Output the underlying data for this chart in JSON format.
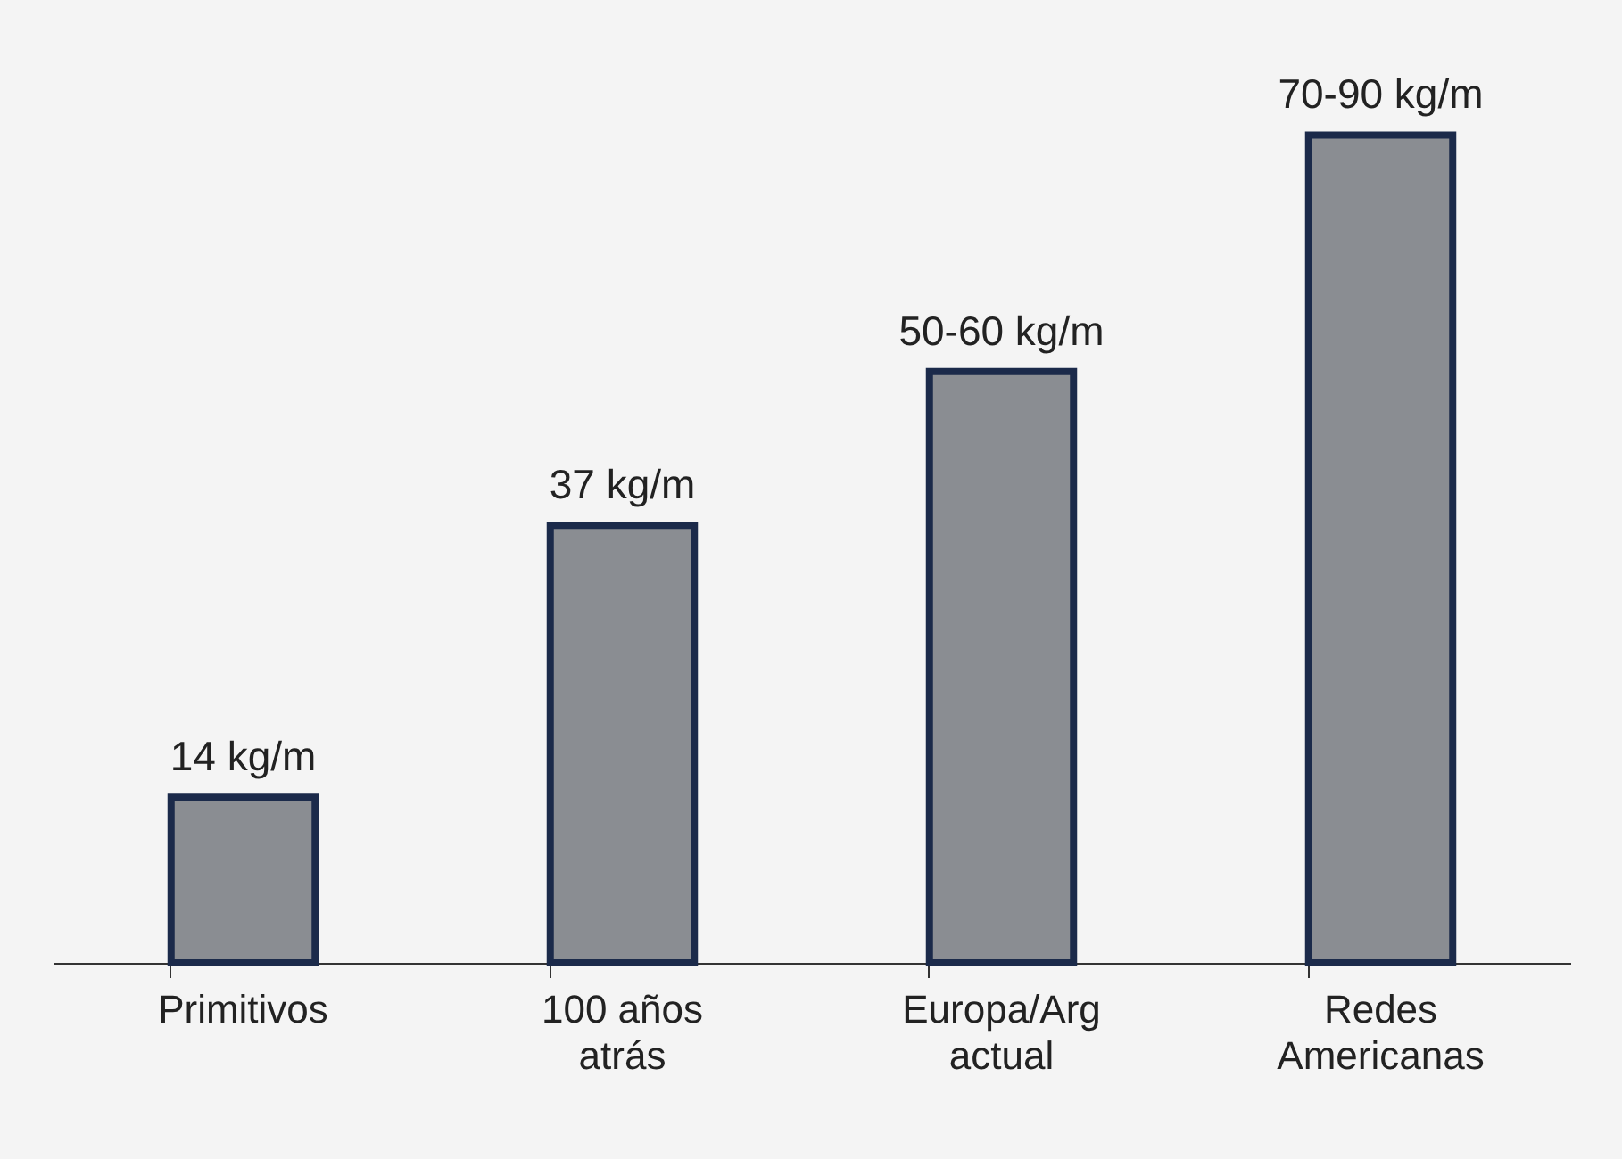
{
  "chart_data": {
    "type": "bar",
    "categories": [
      "Primitivos",
      "100 años atrás",
      "Europa/Arg actual",
      "Redes Americanas"
    ],
    "values": [
      14,
      37,
      50,
      70
    ],
    "value_labels": [
      "14 kg/m",
      "37 kg/m",
      "50-60 kg/m",
      "70-90 kg/m"
    ],
    "color": "#8a8d92"
  }
}
